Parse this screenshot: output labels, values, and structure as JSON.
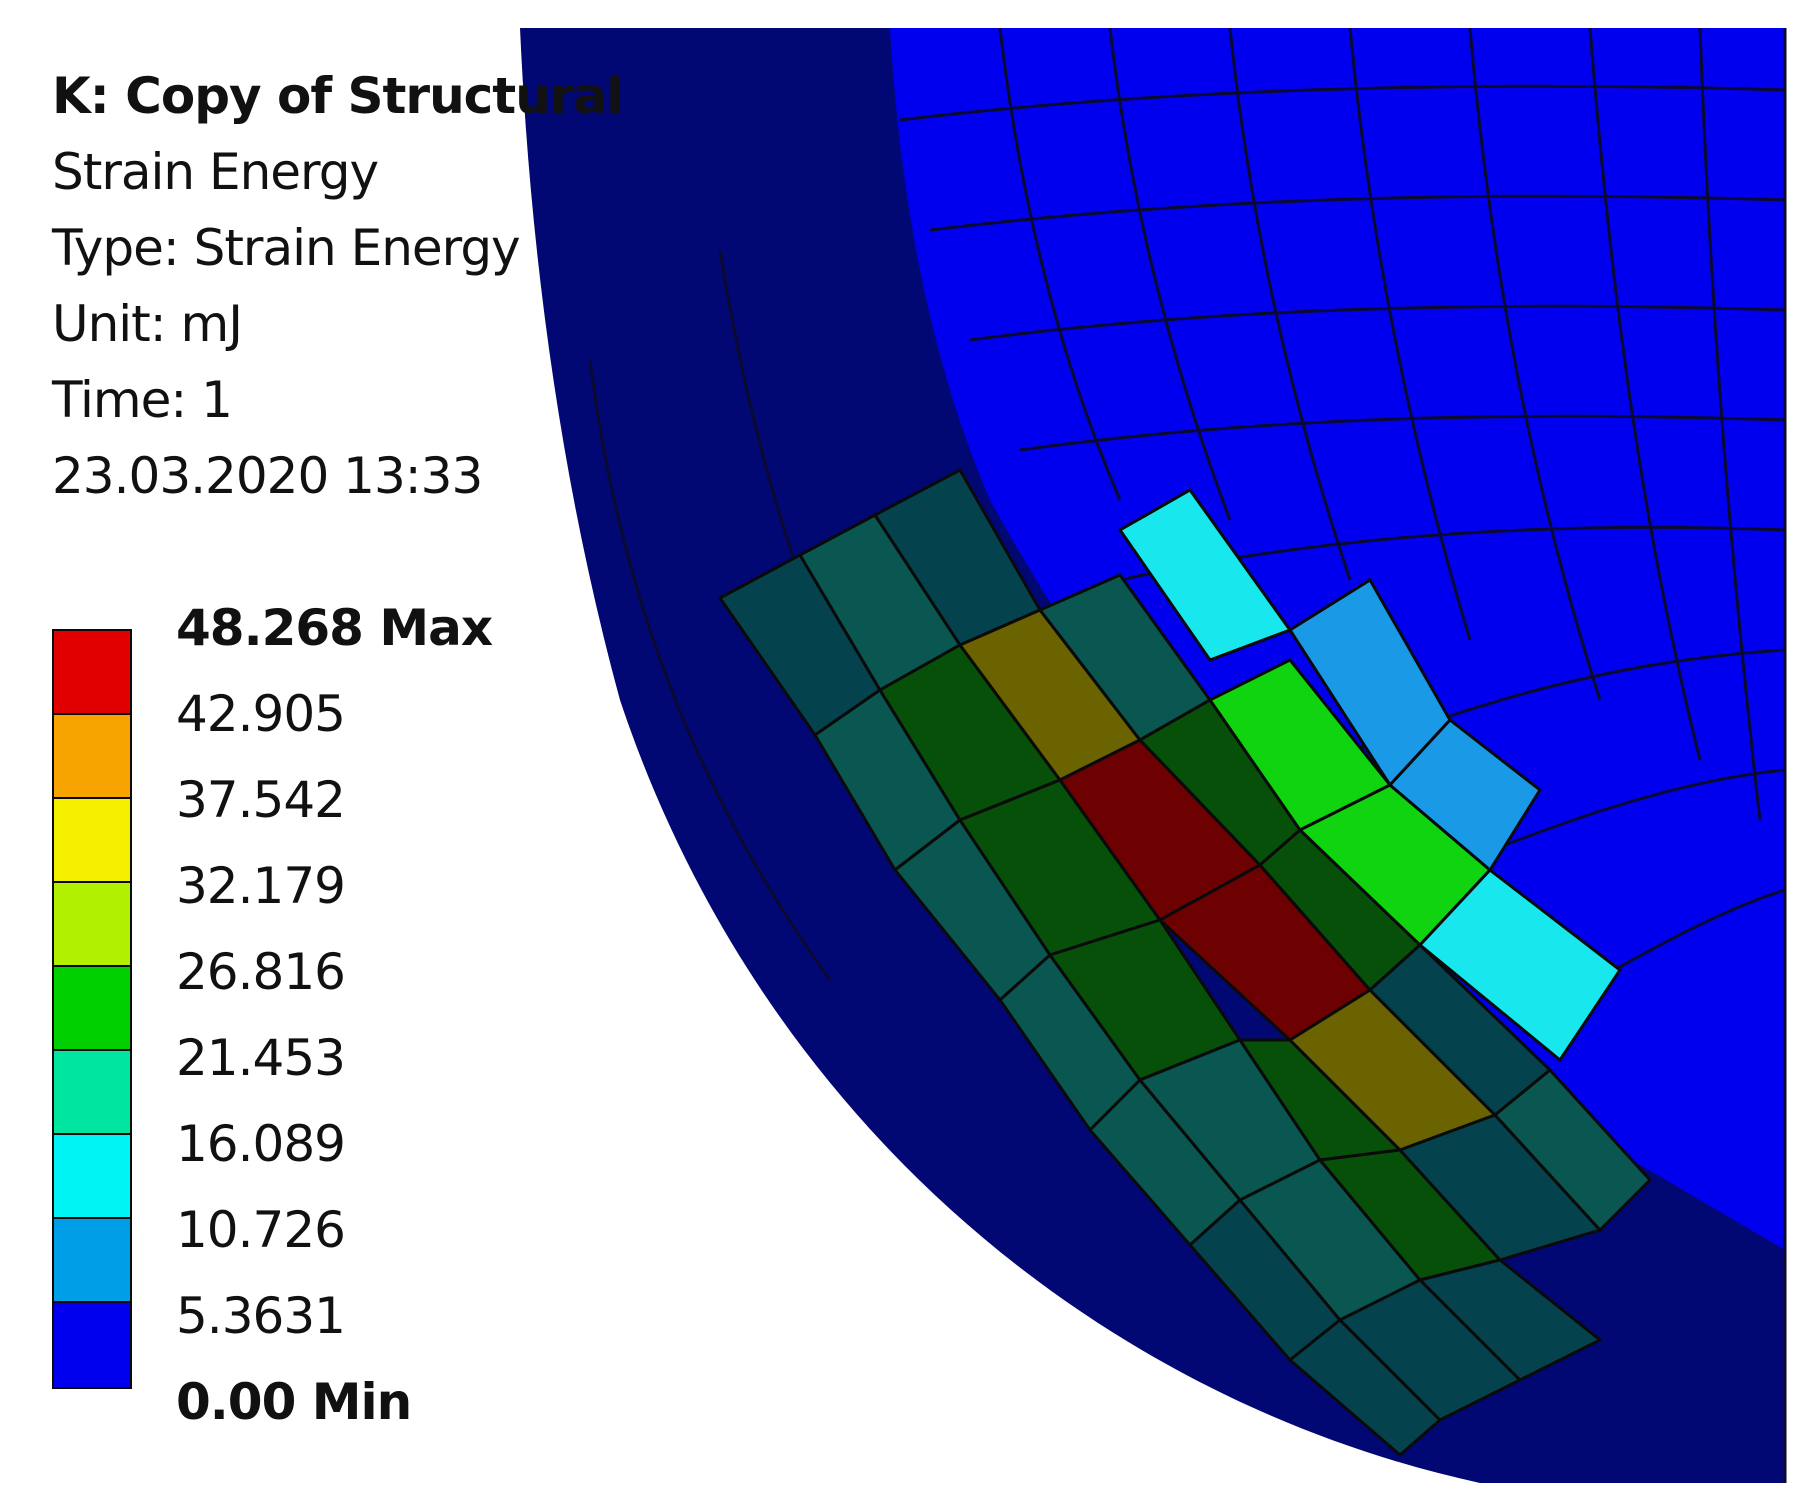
{
  "info": {
    "title": "K: Copy of Structural",
    "result": "Strain Energy",
    "type": "Type: Strain Energy",
    "unit": "Unit: mJ",
    "time": "Time: 1",
    "timestamp": "23.03.2020 13:33"
  },
  "legend": {
    "max_label": "48.268 Max",
    "min_label": "0.00 Min",
    "levels": [
      "42.905",
      "37.542",
      "32.179",
      "26.816",
      "21.453",
      "16.089",
      "10.726",
      "5.3631"
    ],
    "band_colors": [
      "#e10000",
      "#f7a300",
      "#f4f000",
      "#b0f000",
      "#00d000",
      "#00e6a0",
      "#00f4f4",
      "#009ee6",
      "#0000ee"
    ]
  },
  "colors": {
    "background": "#ffffff",
    "inner_face": "#0000ee",
    "outer_ring": "#020873",
    "teal_dark": "#04434d",
    "teal_mid": "#0a5650",
    "green_dark": "#06500a",
    "olive": "#6b6200",
    "dark_red": "#6d0000",
    "bright_green": "#10d410",
    "cyan": "#18e8ee",
    "light_blue": "#1a9ae6"
  }
}
